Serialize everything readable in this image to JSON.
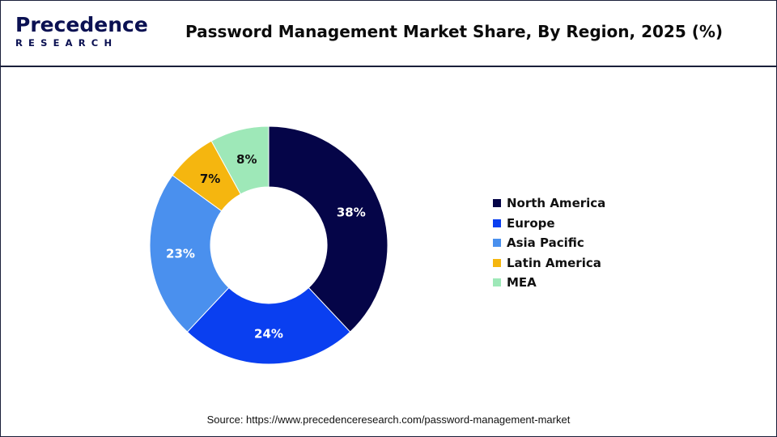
{
  "brand": {
    "name_top": "Precedence",
    "name_bottom": "RESEARCH",
    "color": "#0b1152"
  },
  "header": {
    "title": "Password Management Market Share, By Region, 2025 (%)"
  },
  "chart_data": {
    "type": "pie",
    "title": "Password Management Market Share, By Region, 2025 (%)",
    "categories": [
      "North America",
      "Europe",
      "Asia Pacific",
      "Latin America",
      "MEA"
    ],
    "values": [
      38,
      24,
      23,
      7,
      8
    ],
    "labels": [
      "38%",
      "24%",
      "23%",
      "7%",
      "8%"
    ],
    "colors": [
      "#050548",
      "#0a3ff0",
      "#4a90ee",
      "#f5b60f",
      "#9ee8b8"
    ],
    "label_colors": [
      "#ffffff",
      "#ffffff",
      "#ffffff",
      "#111111",
      "#111111"
    ],
    "donut": true,
    "legend_position": "right"
  },
  "source": "Source: https://www.precedenceresearch.com/password-management-market"
}
